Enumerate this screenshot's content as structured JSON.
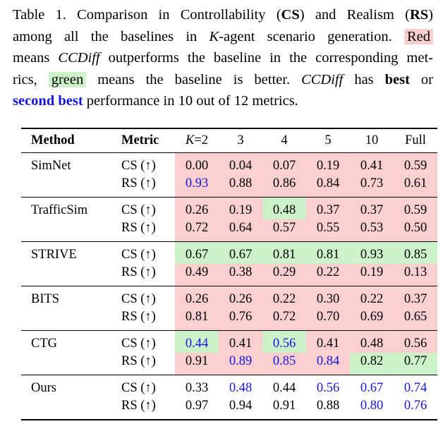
{
  "caption": {
    "l1_a": "Table 1. Comparison in Controllability (",
    "l1_cs": "CS",
    "l1_b": ") and Realism (",
    "l1_rs": "RS",
    "l1_c": ")",
    "l2_a": "among all the baselines in ",
    "l2_k": "K",
    "l2_b": "-agent scenario generation.",
    "l2_red": "Red",
    "l3_a": "means ",
    "l3_ccdiff": "CCDiff",
    "l3_b": " outperforms the baseline in the corresponding met-",
    "l4_a": "rics,",
    "l4_green": "green",
    "l4_b": "means the baseline is better.",
    "l4_ccdiff": "CCDiff",
    "l4_c": "has",
    "l4_best": "best",
    "l4_d": "or",
    "l5_second": "second best",
    "l5_a": " performance in 10 out of 12 metrics."
  },
  "colors": {
    "red_bg": "#f9cfcf",
    "green_bg": "#cdf2c9",
    "blue_text": "#1515e0"
  },
  "table": {
    "headers": {
      "method": "Method",
      "metric": "Metric",
      "k_italic": "K",
      "k_first": "=2",
      "k2": "3",
      "k3": "4",
      "k4": "5",
      "k5": "10",
      "k6": "Full"
    },
    "rows": [
      {
        "method": "SimNet",
        "cs_label": "CS (↑)",
        "rs_label": "RS (↑)",
        "cs": [
          "0.00",
          "0.04",
          "0.07",
          "0.19",
          "0.41",
          "0.59"
        ],
        "rs": [
          "0.93",
          "0.88",
          "0.86",
          "0.84",
          "0.73",
          "0.61"
        ]
      },
      {
        "method": "TrafficSim",
        "cs_label": "CS (↑)",
        "rs_label": "RS (↑)",
        "cs": [
          "0.26",
          "0.19",
          "0.48",
          "0.37",
          "0.37",
          "0.59"
        ],
        "rs": [
          "0.72",
          "0.64",
          "0.57",
          "0.55",
          "0.53",
          "0.50"
        ]
      },
      {
        "method": "STRIVE",
        "cs_label": "CS (↑)",
        "rs_label": "RS (↑)",
        "cs": [
          "0.67",
          "0.67",
          "0.81",
          "0.81",
          "0.93",
          "0.85"
        ],
        "rs": [
          "0.49",
          "0.38",
          "0.29",
          "0.22",
          "0.19",
          "0.13"
        ]
      },
      {
        "method": "BITS",
        "cs_label": "CS (↑)",
        "rs_label": "RS (↑)",
        "cs": [
          "0.26",
          "0.26",
          "0.22",
          "0.30",
          "0.22",
          "0.37"
        ],
        "rs": [
          "0.81",
          "0.76",
          "0.72",
          "0.70",
          "0.69",
          "0.65"
        ]
      },
      {
        "method": "CTG",
        "cs_label": "CS (↑)",
        "rs_label": "RS (↑)",
        "cs": [
          "0.44",
          "0.41",
          "0.56",
          "0.41",
          "0.48",
          "0.56"
        ],
        "rs": [
          "0.91",
          "0.89",
          "0.85",
          "0.84",
          "0.82",
          "0.77"
        ]
      },
      {
        "method": "Ours",
        "cs_label": "CS (↑)",
        "rs_label": "RS (↑)",
        "cs": [
          "0.33",
          "0.48",
          "0.44",
          "0.56",
          "0.67",
          "0.74"
        ],
        "rs": [
          "0.97",
          "0.94",
          "0.91",
          "0.88",
          "0.80",
          "0.76"
        ]
      }
    ]
  }
}
